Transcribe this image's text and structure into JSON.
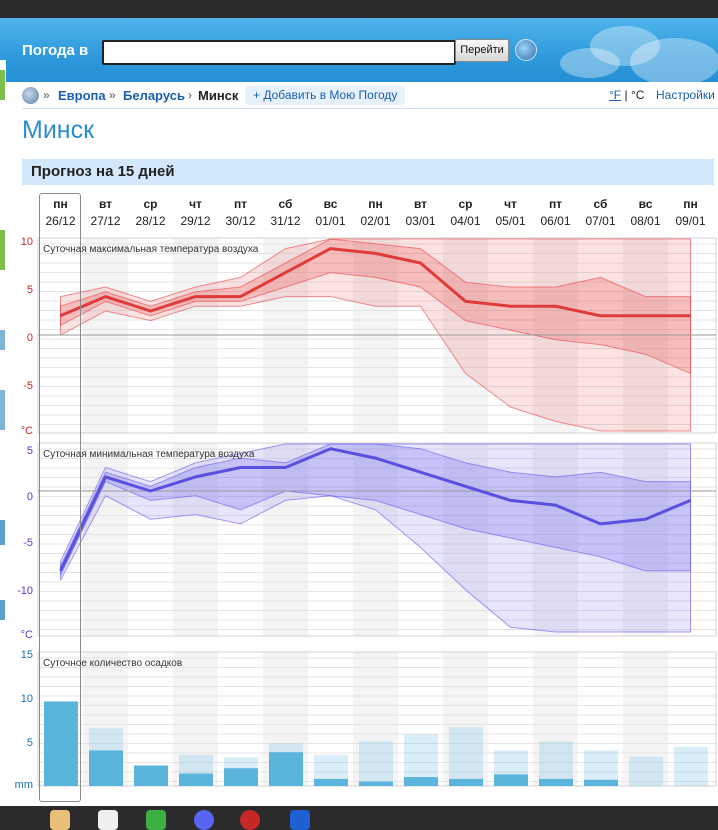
{
  "header": {
    "label": "Погода в",
    "search_value": "",
    "go_button": "Перейти"
  },
  "breadcrumb": {
    "items": [
      "Европа",
      "Беларусь"
    ],
    "current": "Минск",
    "add_button": "+ Добавить в Мою Погоду",
    "unit_f": "°F",
    "unit_sep": "|",
    "unit_c": "°C",
    "settings": "Настройки"
  },
  "city": "Минск",
  "forecast_title": "Прогноз на 15 дней",
  "days": [
    {
      "name": "пн",
      "date": "26/12"
    },
    {
      "name": "вт",
      "date": "27/12"
    },
    {
      "name": "ср",
      "date": "28/12"
    },
    {
      "name": "чт",
      "date": "29/12"
    },
    {
      "name": "пт",
      "date": "30/12"
    },
    {
      "name": "сб",
      "date": "31/12"
    },
    {
      "name": "вс",
      "date": "01/01"
    },
    {
      "name": "пн",
      "date": "02/01"
    },
    {
      "name": "вт",
      "date": "03/01"
    },
    {
      "name": "ср",
      "date": "04/01"
    },
    {
      "name": "чт",
      "date": "05/01"
    },
    {
      "name": "пт",
      "date": "06/01"
    },
    {
      "name": "сб",
      "date": "07/01"
    },
    {
      "name": "вс",
      "date": "08/01"
    },
    {
      "name": "пн",
      "date": "09/01"
    }
  ],
  "chart_data": [
    {
      "type": "area",
      "title": "Суточная максимальная температура воздуха",
      "ylabel": "°C",
      "y_ticks": [
        "10",
        "5",
        "0",
        "-5"
      ],
      "ylim": [
        -10,
        10
      ],
      "color": "#e03b3b",
      "categories": [
        "26/12",
        "27/12",
        "28/12",
        "29/12",
        "30/12",
        "31/12",
        "01/01",
        "02/01",
        "03/01",
        "04/01",
        "05/01",
        "06/01",
        "07/01",
        "08/01",
        "09/01"
      ],
      "mean": [
        2.0,
        4.0,
        2.5,
        4.0,
        4.0,
        6.5,
        9.0,
        8.5,
        7.5,
        3.5,
        3.0,
        3.0,
        2.0,
        2.0,
        2.0
      ],
      "inner_low": [
        1.0,
        3.5,
        2.0,
        3.5,
        3.5,
        5.0,
        6.5,
        6.0,
        5.0,
        1.5,
        0.5,
        -0.5,
        -1.0,
        -2.0,
        -4.0
      ],
      "inner_high": [
        3.0,
        4.5,
        3.0,
        4.5,
        5.0,
        7.5,
        10.0,
        9.5,
        9.0,
        5.5,
        5.0,
        5.0,
        6.0,
        4.0,
        4.0
      ],
      "outer_low": [
        0.0,
        2.5,
        1.5,
        3.0,
        3.0,
        4.0,
        4.0,
        3.0,
        3.0,
        -4.0,
        -7.5,
        -9.0,
        -10.0,
        -10.0,
        -10.0
      ],
      "outer_high": [
        4.0,
        5.0,
        3.5,
        5.0,
        6.0,
        9.0,
        10.0,
        10.0,
        10.0,
        10.0,
        10.0,
        10.0,
        10.0,
        10.0,
        10.0
      ]
    },
    {
      "type": "area",
      "title": "Суточная минимальная температура воздуха",
      "ylabel": "°C",
      "y_ticks": [
        "5",
        "0",
        "-5",
        "-10"
      ],
      "ylim": [
        -15,
        5
      ],
      "color": "#5a50e0",
      "categories": [
        "26/12",
        "27/12",
        "28/12",
        "29/12",
        "30/12",
        "31/12",
        "01/01",
        "02/01",
        "03/01",
        "04/01",
        "05/01",
        "06/01",
        "07/01",
        "08/01",
        "09/01"
      ],
      "mean": [
        -8.5,
        1.5,
        0.0,
        1.5,
        2.5,
        2.5,
        4.5,
        3.5,
        2.0,
        0.5,
        -1.0,
        -1.5,
        -3.5,
        -3.0,
        -1.0
      ],
      "inner_low": [
        -9.0,
        1.0,
        -1.0,
        -0.5,
        -2.0,
        0.0,
        -0.5,
        -1.0,
        -2.5,
        -4.0,
        -5.0,
        -6.0,
        -7.0,
        -8.5,
        -8.5
      ],
      "inner_high": [
        -8.0,
        2.0,
        0.5,
        2.5,
        3.5,
        3.0,
        5.0,
        5.0,
        4.5,
        3.0,
        2.0,
        1.5,
        2.0,
        1.0,
        1.0
      ],
      "outer_low": [
        -9.5,
        -0.5,
        -3.0,
        -2.5,
        -3.5,
        -1.0,
        -0.5,
        -2.0,
        -6.0,
        -10.5,
        -14.5,
        -15.0,
        -15.0,
        -15.0,
        -15.0
      ],
      "outer_high": [
        -7.5,
        2.5,
        1.0,
        3.0,
        4.0,
        5.0,
        5.0,
        5.0,
        5.0,
        5.0,
        5.0,
        5.0,
        5.0,
        5.0,
        5.0
      ]
    },
    {
      "type": "bar",
      "title": "Суточное количество осадков",
      "ylabel": "mm",
      "y_ticks": [
        "15",
        "10",
        "5"
      ],
      "ylim": [
        0,
        15
      ],
      "color": "#5ab4dc",
      "categories": [
        "26/12",
        "27/12",
        "28/12",
        "29/12",
        "30/12",
        "31/12",
        "01/01",
        "02/01",
        "03/01",
        "04/01",
        "05/01",
        "06/01",
        "07/01",
        "08/01",
        "09/01"
      ],
      "values": [
        9.5,
        4.0,
        2.3,
        1.4,
        2.0,
        3.8,
        0.8,
        0.5,
        1.0,
        0.8,
        1.3,
        0.8,
        0.7,
        0.0,
        0.0
      ],
      "upper": [
        9.5,
        6.5,
        2.3,
        3.5,
        3.2,
        4.8,
        3.5,
        5.0,
        5.8,
        6.6,
        4.0,
        5.0,
        4.0,
        3.3,
        4.4
      ]
    }
  ]
}
